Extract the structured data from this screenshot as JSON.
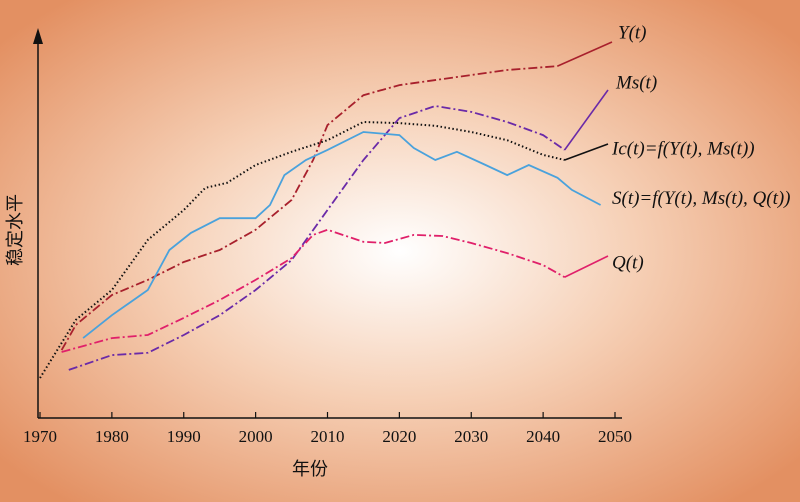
{
  "chart_data": {
    "type": "line",
    "xlabel": "年份",
    "ylabel": "稳定水平",
    "xlim": [
      1970,
      2050
    ],
    "xticks": [
      1970,
      1980,
      1990,
      2000,
      2010,
      2020,
      2030,
      2040,
      2050
    ],
    "ylim": [
      0,
      100
    ],
    "series": [
      {
        "name": "Y(t)",
        "color": "#a8202c",
        "style": "dashdot",
        "x": [
          1973,
          1975,
          1980,
          1985,
          1990,
          1995,
          2000,
          2005,
          2008,
          2010,
          2015,
          2020,
          2030,
          2035,
          2042
        ],
        "values": [
          17.5,
          24,
          31.7,
          35.6,
          40.2,
          43.3,
          48.5,
          56.2,
          66.5,
          75.5,
          83.2,
          85.8,
          88.4,
          89.7,
          90.7
        ]
      },
      {
        "name": "Ms(t)",
        "color": "#6a2aa8",
        "style": "dashdot",
        "x": [
          1974,
          1980,
          1985,
          1990,
          1995,
          2000,
          2005,
          2010,
          2015,
          2020,
          2025,
          2030,
          2035,
          2040,
          2043
        ],
        "values": [
          12.4,
          16.2,
          16.8,
          21.4,
          26.5,
          33,
          40.7,
          53.6,
          66.5,
          77.3,
          80.4,
          78.9,
          76.3,
          72.9,
          69.1
        ]
      },
      {
        "name": "Ic(t)=f(Y(t), Ms(t))",
        "color": "#111111",
        "style": "dotted",
        "x": [
          1970,
          1975,
          1980,
          1985,
          1990,
          1993,
          1996,
          2000,
          2005,
          2010,
          2015,
          2020,
          2025,
          2030,
          2035,
          2040,
          2043
        ],
        "values": [
          10.3,
          25.3,
          33,
          45.9,
          53.6,
          59.3,
          60.6,
          65.2,
          68.6,
          71.6,
          76.3,
          76,
          75.3,
          73.7,
          71.6,
          67.8,
          66.5
        ]
      },
      {
        "name": "S(t)=f(Y(t), Ms(t), Q(t))",
        "color": "#4aa2dc",
        "style": "solid",
        "x": [
          1976,
          1980,
          1985,
          1988,
          1991,
          1995,
          2000,
          2002,
          2004,
          2007,
          2010,
          2015,
          2020,
          2022,
          2025,
          2028,
          2032,
          2035,
          2038,
          2042,
          2044,
          2048
        ],
        "values": [
          20.6,
          26.5,
          33,
          43.3,
          47.7,
          51.5,
          51.5,
          54.9,
          62.6,
          66.5,
          69.1,
          73.7,
          72.9,
          69.6,
          66.5,
          68.6,
          65.2,
          62.6,
          65.2,
          61.9,
          58.8,
          54.9
        ]
      },
      {
        "name": "Q(t)",
        "color": "#e0206a",
        "style": "dashdot",
        "x": [
          1973,
          1980,
          1985,
          1990,
          1995,
          2000,
          2005,
          2008,
          2010,
          2015,
          2018,
          2022,
          2026,
          2030,
          2035,
          2040,
          2043
        ],
        "values": [
          17,
          20.6,
          21.4,
          25.8,
          30.4,
          35.6,
          41.2,
          47.2,
          48.5,
          45.4,
          45.1,
          47.2,
          46.9,
          45.1,
          42.5,
          39.4,
          36.3
        ]
      }
    ]
  }
}
